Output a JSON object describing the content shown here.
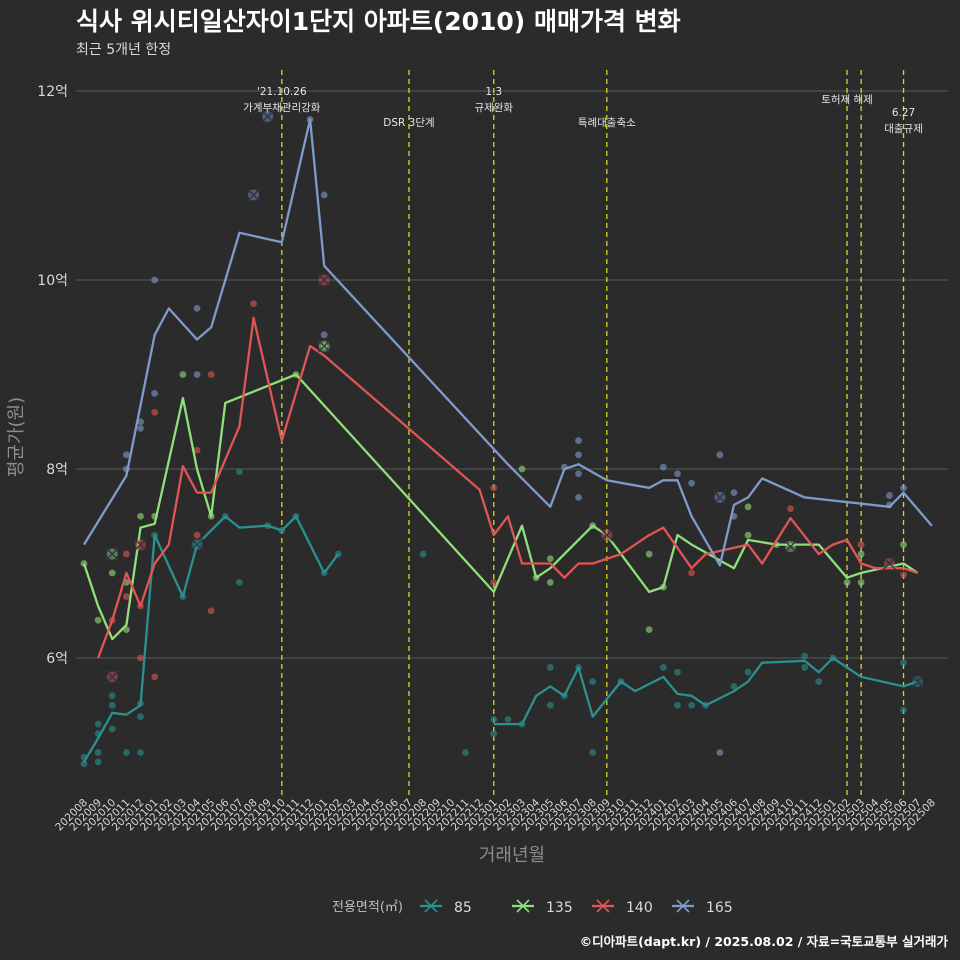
{
  "chart_data": {
    "type": "line",
    "title": "식사 위시티일산자이1단지 아파트(2010) 매매가격 변화",
    "subtitle": "최근 5개년 한정",
    "xlabel": "거래년월",
    "ylabel": "평균가(원)",
    "caption": "©디아파트(dapt.kr) / 2025.08.02 / 자료=국토교통부 실거래가",
    "legend_title": "전용면적(㎡)",
    "legend_position": "bottom",
    "grid": true,
    "ylim": [
      4.6,
      12.3
    ],
    "yticks": [
      {
        "value": 6,
        "label": "6억"
      },
      {
        "value": 8,
        "label": "8억"
      },
      {
        "value": 10,
        "label": "10억"
      },
      {
        "value": 12,
        "label": "12억"
      }
    ],
    "x_start": "2020-08",
    "x_end": "2025-08",
    "events": [
      {
        "date": "2021-10",
        "lines": [
          "'21.10.26",
          "가계부채관리강화"
        ],
        "level": "top"
      },
      {
        "date": "2022-07",
        "lines": [
          "DSR 3단계"
        ],
        "level": "low"
      },
      {
        "date": "2023-01",
        "lines": [
          "1.3",
          "규제완화"
        ],
        "level": "top"
      },
      {
        "date": "2023-09",
        "lines": [
          "특례대출축소"
        ],
        "level": "low"
      },
      {
        "date": "2025-02",
        "lines": [
          "토허제 해제"
        ],
        "level": "mid"
      },
      {
        "date": "2025-03",
        "lines": [],
        "level": "mid"
      },
      {
        "date": "2025-06",
        "lines": [
          "6.27",
          "대출규제"
        ],
        "level": "low2"
      }
    ],
    "series": [
      {
        "name": "85",
        "color": "#2a9090",
        "line": [
          [
            "2020-08",
            4.9
          ],
          [
            "2020-09",
            5.15
          ],
          [
            "2020-10",
            5.42
          ],
          [
            "2020-11",
            5.4
          ],
          [
            "2020-12",
            5.5
          ],
          [
            "2021-01",
            7.3
          ],
          [
            "2021-03",
            6.65
          ],
          [
            "2021-04",
            7.2
          ],
          [
            "2021-06",
            7.5
          ],
          [
            "2021-07",
            7.38
          ],
          [
            "2021-09",
            7.4
          ],
          [
            "2021-10",
            7.35
          ],
          [
            "2021-11",
            7.5
          ],
          [
            "2022-01",
            6.9
          ],
          [
            "2022-02",
            7.1
          ]
        ],
        "line2": [
          [
            "2023-01",
            5.3
          ],
          [
            "2023-02",
            5.3
          ],
          [
            "2023-03",
            5.3
          ],
          [
            "2023-04",
            5.6
          ],
          [
            "2023-05",
            5.7
          ],
          [
            "2023-06",
            5.6
          ],
          [
            "2023-07",
            5.9
          ],
          [
            "2023-08",
            5.38
          ],
          [
            "2023-10",
            5.75
          ],
          [
            "2023-11",
            5.65
          ],
          [
            "2024-01",
            5.8
          ],
          [
            "2024-02",
            5.62
          ],
          [
            "2024-03",
            5.6
          ],
          [
            "2024-04",
            5.5
          ],
          [
            "2024-06",
            5.65
          ],
          [
            "2024-07",
            5.75
          ],
          [
            "2024-08",
            5.95
          ],
          [
            "2024-11",
            5.97
          ],
          [
            "2024-12",
            5.85
          ],
          [
            "2025-01",
            6.0
          ],
          [
            "2025-03",
            5.8
          ],
          [
            "2025-06",
            5.7
          ],
          [
            "2025-07",
            5.75
          ]
        ],
        "points": [
          [
            "2020-08",
            4.88
          ],
          [
            "2020-08",
            4.95
          ],
          [
            "2020-09",
            4.9
          ],
          [
            "2020-09",
            5.0
          ],
          [
            "2020-09",
            5.2
          ],
          [
            "2020-09",
            5.3
          ],
          [
            "2020-10",
            5.25
          ],
          [
            "2020-10",
            5.5
          ],
          [
            "2020-10",
            5.6
          ],
          [
            "2020-11",
            5.0
          ],
          [
            "2020-12",
            5.0
          ],
          [
            "2020-12",
            5.38
          ],
          [
            "2020-12",
            5.52
          ],
          [
            "2021-01",
            7.3
          ],
          [
            "2021-03",
            6.65
          ],
          [
            "2021-04",
            7.2
          ],
          [
            "2021-06",
            7.5
          ],
          [
            "2021-07",
            6.8
          ],
          [
            "2021-07",
            7.97
          ],
          [
            "2021-09",
            7.4
          ],
          [
            "2021-10",
            7.35
          ],
          [
            "2021-11",
            7.5
          ],
          [
            "2022-01",
            6.9
          ],
          [
            "2022-02",
            7.1
          ],
          [
            "2022-08",
            7.1
          ],
          [
            "2022-11",
            5.0
          ],
          [
            "2023-01",
            5.2
          ],
          [
            "2023-01",
            5.35
          ],
          [
            "2023-02",
            5.35
          ],
          [
            "2023-03",
            5.3
          ],
          [
            "2023-05",
            5.5
          ],
          [
            "2023-05",
            5.9
          ],
          [
            "2023-06",
            5.6
          ],
          [
            "2023-07",
            5.9
          ],
          [
            "2023-08",
            5.0
          ],
          [
            "2023-08",
            5.75
          ],
          [
            "2023-10",
            5.75
          ],
          [
            "2024-01",
            5.9
          ],
          [
            "2024-02",
            5.85
          ],
          [
            "2024-02",
            5.5
          ],
          [
            "2024-03",
            5.5
          ],
          [
            "2024-04",
            5.5
          ],
          [
            "2024-06",
            5.7
          ],
          [
            "2024-07",
            5.85
          ],
          [
            "2024-11",
            6.02
          ],
          [
            "2024-11",
            5.9
          ],
          [
            "2024-12",
            5.75
          ],
          [
            "2025-01",
            6.0
          ],
          [
            "2025-06",
            5.95
          ],
          [
            "2025-06",
            5.45
          ]
        ],
        "markers": [
          [
            "2021-04",
            7.2
          ],
          [
            "2025-07",
            5.75
          ]
        ]
      },
      {
        "name": "135",
        "color": "#8fe07a",
        "line": [
          [
            "2020-08",
            7.0
          ],
          [
            "2020-09",
            6.55
          ],
          [
            "2020-10",
            6.2
          ],
          [
            "2020-11",
            6.35
          ],
          [
            "2020-12",
            7.38
          ],
          [
            "2021-01",
            7.42
          ],
          [
            "2021-03",
            8.75
          ],
          [
            "2021-04",
            8.0
          ],
          [
            "2021-05",
            7.5
          ],
          [
            "2021-06",
            8.7
          ],
          [
            "2021-11",
            9.0
          ],
          [
            "2023-01",
            6.7
          ],
          [
            "2023-03",
            7.4
          ],
          [
            "2023-04",
            6.85
          ],
          [
            "2023-05",
            6.95
          ],
          [
            "2023-08",
            7.4
          ],
          [
            "2023-09",
            7.3
          ],
          [
            "2023-12",
            6.7
          ],
          [
            "2024-01",
            6.75
          ],
          [
            "2024-02",
            7.3
          ],
          [
            "2024-03",
            7.2
          ],
          [
            "2024-06",
            6.95
          ],
          [
            "2024-07",
            7.25
          ],
          [
            "2024-09",
            7.2
          ],
          [
            "2024-12",
            7.2
          ],
          [
            "2025-02",
            6.85
          ],
          [
            "2025-03",
            6.9
          ],
          [
            "2025-06",
            7.0
          ],
          [
            "2025-07",
            6.9
          ]
        ],
        "points": [
          [
            "2020-08",
            7.0
          ],
          [
            "2020-09",
            6.4
          ],
          [
            "2020-10",
            6.9
          ],
          [
            "2020-11",
            6.3
          ],
          [
            "2020-11",
            6.8
          ],
          [
            "2020-12",
            7.5
          ],
          [
            "2021-01",
            7.5
          ],
          [
            "2021-03",
            9.0
          ],
          [
            "2021-05",
            7.5
          ],
          [
            "2021-11",
            9.0
          ],
          [
            "2022-01",
            9.3
          ],
          [
            "2023-03",
            8.0
          ],
          [
            "2023-04",
            6.85
          ],
          [
            "2023-05",
            7.05
          ],
          [
            "2023-05",
            6.8
          ],
          [
            "2023-08",
            7.4
          ],
          [
            "2023-12",
            6.3
          ],
          [
            "2023-12",
            7.1
          ],
          [
            "2024-01",
            6.75
          ],
          [
            "2024-07",
            7.3
          ],
          [
            "2024-07",
            7.6
          ],
          [
            "2024-09",
            7.2
          ],
          [
            "2025-02",
            6.8
          ],
          [
            "2025-03",
            6.8
          ],
          [
            "2025-03",
            7.1
          ],
          [
            "2025-06",
            7.2
          ]
        ],
        "markers": [
          [
            "2020-10",
            7.1
          ],
          [
            "2022-01",
            9.3
          ],
          [
            "2024-10",
            7.18
          ]
        ]
      },
      {
        "name": "140",
        "color": "#e05555",
        "line": [
          [
            "2020-09",
            6.0
          ],
          [
            "2020-10",
            6.4
          ],
          [
            "2020-11",
            6.9
          ],
          [
            "2020-12",
            6.55
          ],
          [
            "2021-01",
            7.0
          ],
          [
            "2021-02",
            7.2
          ],
          [
            "2021-03",
            8.03
          ],
          [
            "2021-04",
            7.75
          ],
          [
            "2021-05",
            7.75
          ],
          [
            "2021-07",
            8.45
          ],
          [
            "2021-08",
            9.6
          ],
          [
            "2021-10",
            8.3
          ],
          [
            "2021-12",
            9.3
          ],
          [
            "2022-01",
            9.2
          ],
          [
            "2022-12",
            7.78
          ],
          [
            "2023-01",
            7.3
          ],
          [
            "2023-02",
            7.5
          ],
          [
            "2023-03",
            7.0
          ],
          [
            "2023-05",
            7.0
          ],
          [
            "2023-06",
            6.85
          ],
          [
            "2023-07",
            7.0
          ],
          [
            "2023-08",
            7.0
          ],
          [
            "2023-10",
            7.1
          ],
          [
            "2023-12",
            7.3
          ],
          [
            "2024-01",
            7.38
          ],
          [
            "2024-03",
            6.95
          ],
          [
            "2024-04",
            7.1
          ],
          [
            "2024-07",
            7.2
          ],
          [
            "2024-08",
            7.0
          ],
          [
            "2024-10",
            7.48
          ],
          [
            "2024-12",
            7.1
          ],
          [
            "2025-01",
            7.2
          ],
          [
            "2025-02",
            7.25
          ],
          [
            "2025-03",
            7.0
          ],
          [
            "2025-04",
            6.95
          ],
          [
            "2025-06",
            6.95
          ],
          [
            "2025-07",
            6.9
          ]
        ],
        "points": [
          [
            "2020-10",
            6.4
          ],
          [
            "2020-11",
            7.1
          ],
          [
            "2020-11",
            6.65
          ],
          [
            "2020-12",
            6.0
          ],
          [
            "2020-12",
            6.55
          ],
          [
            "2021-01",
            8.6
          ],
          [
            "2021-01",
            5.8
          ],
          [
            "2021-04",
            8.2
          ],
          [
            "2021-04",
            7.3
          ],
          [
            "2021-05",
            9.0
          ],
          [
            "2021-05",
            6.5
          ],
          [
            "2021-08",
            9.75
          ],
          [
            "2023-01",
            6.8
          ],
          [
            "2023-01",
            7.8
          ],
          [
            "2024-03",
            6.9
          ],
          [
            "2024-10",
            7.58
          ],
          [
            "2025-06",
            6.88
          ],
          [
            "2025-03",
            7.2
          ]
        ],
        "markers": [
          [
            "2020-10",
            5.8
          ],
          [
            "2020-12",
            7.2
          ],
          [
            "2022-01",
            10.0
          ],
          [
            "2023-09",
            7.3
          ],
          [
            "2025-05",
            7.0
          ]
        ]
      },
      {
        "name": "165",
        "color": "#7f9bc9",
        "line": [
          [
            "2020-08",
            7.2
          ],
          [
            "2020-11",
            7.93
          ],
          [
            "2021-01",
            9.42
          ],
          [
            "2021-02",
            9.7
          ],
          [
            "2021-04",
            9.37
          ],
          [
            "2021-05",
            9.5
          ],
          [
            "2021-07",
            10.5
          ],
          [
            "2021-10",
            10.4
          ],
          [
            "2021-12",
            11.7
          ],
          [
            "2022-01",
            10.15
          ],
          [
            "2023-02",
            8.05
          ],
          [
            "2023-05",
            7.6
          ],
          [
            "2023-06",
            8.0
          ],
          [
            "2023-07",
            8.05
          ],
          [
            "2023-09",
            7.88
          ],
          [
            "2023-12",
            7.8
          ],
          [
            "2024-01",
            7.88
          ],
          [
            "2024-02",
            7.88
          ],
          [
            "2024-03",
            7.5
          ],
          [
            "2024-05",
            6.98
          ],
          [
            "2024-06",
            7.62
          ],
          [
            "2024-07",
            7.7
          ],
          [
            "2024-08",
            7.9
          ],
          [
            "2024-11",
            7.7
          ],
          [
            "2025-05",
            7.6
          ],
          [
            "2025-06",
            7.75
          ],
          [
            "2025-08",
            7.4
          ]
        ],
        "points": [
          [
            "2020-11",
            8.0
          ],
          [
            "2020-11",
            8.15
          ],
          [
            "2020-12",
            8.5
          ],
          [
            "2020-12",
            8.43
          ],
          [
            "2021-01",
            10.0
          ],
          [
            "2021-01",
            8.8
          ],
          [
            "2021-04",
            9.0
          ],
          [
            "2021-04",
            9.7
          ],
          [
            "2021-12",
            11.7
          ],
          [
            "2022-01",
            10.9
          ],
          [
            "2022-01",
            9.42
          ],
          [
            "2023-06",
            8.02
          ],
          [
            "2023-07",
            8.15
          ],
          [
            "2023-07",
            8.3
          ],
          [
            "2023-07",
            7.7
          ],
          [
            "2023-07",
            7.95
          ],
          [
            "2024-01",
            8.02
          ],
          [
            "2024-02",
            7.95
          ],
          [
            "2024-03",
            7.85
          ],
          [
            "2024-05",
            8.15
          ],
          [
            "2024-05",
            5.0
          ],
          [
            "2024-06",
            7.75
          ],
          [
            "2024-06",
            7.5
          ],
          [
            "2025-05",
            7.62
          ],
          [
            "2025-05",
            7.72
          ],
          [
            "2025-06",
            7.8
          ]
        ],
        "markers": [
          [
            "2021-09",
            11.73
          ],
          [
            "2021-08",
            10.9
          ],
          [
            "2024-05",
            7.7
          ]
        ]
      }
    ]
  }
}
